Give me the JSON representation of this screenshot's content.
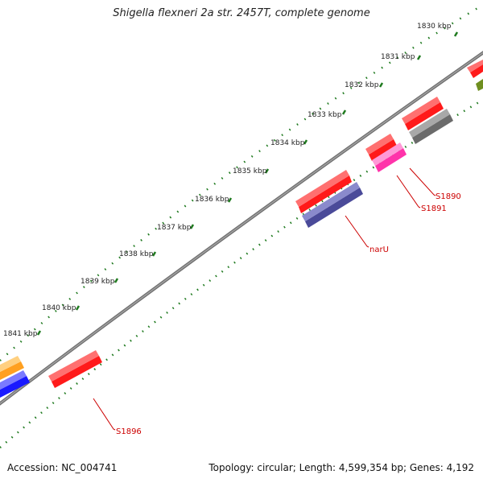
{
  "title": "Shigella flexneri 2a str. 2457T, complete genome",
  "accession_label": "Accession: NC_004741",
  "summary_label": "Topology: circular; Length: 4,599,354 bp; Genes: 4,192",
  "kbp_labels": [
    "1830 kbp",
    "1831 kbp",
    "1832 kbp",
    "1833 kbp",
    "1834 kbp",
    "1835 kbp",
    "1836 kbp",
    "1837 kbp",
    "1838 kbp",
    "1839 kbp",
    "1840 kbp",
    "1841 kbp"
  ],
  "gene_labels": {
    "s1890": "S1890",
    "s1891": "S1891",
    "naru": "narU",
    "s1896": "S1896"
  },
  "colors": {
    "backbone": "#7a7a7a",
    "tick": "#1f7a1f",
    "label_red": "#cc0000",
    "red": "#ff1a1a",
    "pink": "#ff33aa",
    "navy": "#4a4a99",
    "gray": "#6b6b6b",
    "orange": "#ffa020",
    "blue": "#1a1aff",
    "olive": "#6f8f20"
  }
}
